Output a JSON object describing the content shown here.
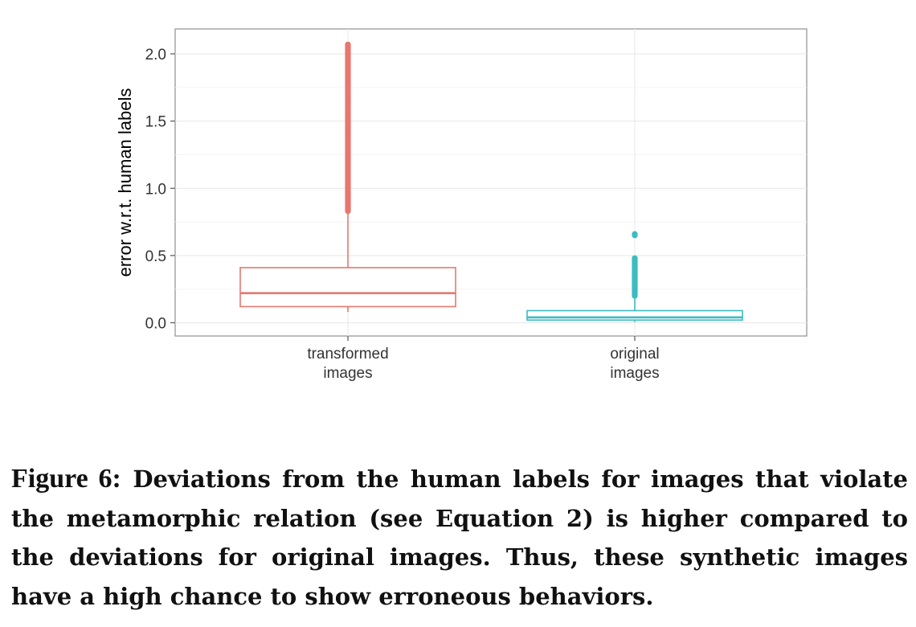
{
  "chart_data": {
    "type": "boxplot",
    "ylabel": "error w.r.t. human labels",
    "xlabel": "",
    "ylim": [
      -0.05,
      2.2
    ],
    "y_ticks": [
      0.0,
      0.5,
      1.0,
      1.5,
      2.0
    ],
    "y_tick_labels": [
      "0.0",
      "0.5",
      "1.0",
      "1.5",
      "2.0"
    ],
    "grid": true,
    "legend": "none",
    "categories": [
      {
        "label_lines": [
          "transformed",
          "images"
        ]
      },
      {
        "label_lines": [
          "original",
          "images"
        ]
      }
    ],
    "boxes": [
      {
        "color": "#e8776e",
        "whisker_low": 0.08,
        "q1": 0.12,
        "median": 0.22,
        "q3": 0.41,
        "whisker_high": 0.82,
        "outlier_range": [
          0.83,
          2.07
        ]
      },
      {
        "color": "#3cbcc2",
        "whisker_low": 0.005,
        "q1": 0.02,
        "median": 0.04,
        "q3": 0.09,
        "whisker_high": 0.19,
        "outlier_range": [
          0.2,
          0.48
        ],
        "outliers_extra": [
          0.65,
          0.66
        ]
      }
    ]
  },
  "caption": {
    "lead": "Figure 6:",
    "text": "Deviations from the human labels for images that violate the metamorphic relation (see Equation 2) is higher compared to the deviations for original images. Thus, these synthetic images have a high chance to show erroneous behaviors."
  }
}
